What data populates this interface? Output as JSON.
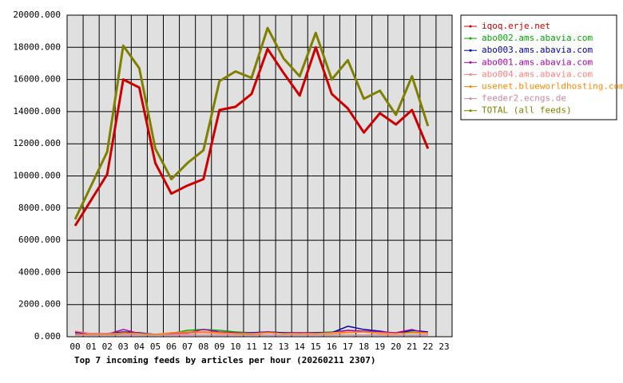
{
  "chart_data": {
    "type": "line",
    "title": "Top 7 incoming feeds by articles per hour (20260211 2307)",
    "categories": [
      "00",
      "01",
      "02",
      "03",
      "04",
      "05",
      "06",
      "07",
      "08",
      "09",
      "10",
      "11",
      "12",
      "13",
      "14",
      "15",
      "16",
      "17",
      "18",
      "19",
      "20",
      "21",
      "22",
      "23"
    ],
    "ylim": [
      0,
      20000
    ],
    "yticks": [
      {
        "value": 0,
        "label": "0.000"
      },
      {
        "value": 2000,
        "label": "2000.000"
      },
      {
        "value": 4000,
        "label": "4000.000"
      },
      {
        "value": 6000,
        "label": "6000.000"
      },
      {
        "value": 8000,
        "label": "8000.000"
      },
      {
        "value": 10000,
        "label": "10000.000"
      },
      {
        "value": 12000,
        "label": "12000.000"
      },
      {
        "value": 14000,
        "label": "14000.000"
      },
      {
        "value": 16000,
        "label": "16000.000"
      },
      {
        "value": 18000,
        "label": "18000.000"
      },
      {
        "value": 20000,
        "label": "20000.000"
      }
    ],
    "grid": true,
    "legend": "right",
    "series": [
      {
        "name": "iqoq.erje.net",
        "color": "#cc0000",
        "values": [
          6900,
          8500,
          10100,
          16000,
          15500,
          10800,
          8900,
          9400,
          9800,
          14100,
          14300,
          15100,
          17900,
          16400,
          15000,
          18000,
          15100,
          14200,
          12700,
          13900,
          13200,
          14100,
          11700,
          null
        ]
      },
      {
        "name": "abo002.ams.abavia.com",
        "color": "#00aa00",
        "values": [
          200,
          150,
          150,
          200,
          200,
          150,
          200,
          400,
          450,
          400,
          300,
          250,
          300,
          250,
          200,
          250,
          300,
          400,
          300,
          250,
          200,
          300,
          200,
          null
        ]
      },
      {
        "name": "abo003.ams.abavia.com",
        "color": "#0000aa",
        "values": [
          300,
          200,
          200,
          300,
          250,
          150,
          200,
          200,
          300,
          250,
          200,
          250,
          300,
          250,
          250,
          250,
          250,
          650,
          450,
          350,
          200,
          400,
          300,
          null
        ]
      },
      {
        "name": "abo001.ams.abavia.com",
        "color": "#aa00aa",
        "values": [
          200,
          150,
          150,
          450,
          200,
          150,
          200,
          250,
          450,
          300,
          250,
          200,
          300,
          200,
          250,
          200,
          250,
          400,
          350,
          300,
          250,
          450,
          200,
          null
        ]
      },
      {
        "name": "abo004.ams.abavia.com",
        "color": "#ff8080",
        "values": [
          350,
          200,
          200,
          200,
          200,
          150,
          150,
          200,
          250,
          200,
          200,
          200,
          250,
          200,
          200,
          200,
          250,
          300,
          300,
          250,
          200,
          250,
          200,
          null
        ]
      },
      {
        "name": "usenet.blueworldhosting.com",
        "color": "#ff8800",
        "values": [
          150,
          150,
          150,
          250,
          200,
          150,
          250,
          300,
          300,
          250,
          200,
          150,
          250,
          200,
          200,
          200,
          200,
          250,
          300,
          200,
          200,
          250,
          250,
          null
        ]
      },
      {
        "name": "feeder2.ecngs.de",
        "color": "#cc8899",
        "values": [
          100,
          100,
          100,
          100,
          100,
          100,
          100,
          100,
          100,
          100,
          100,
          100,
          100,
          100,
          100,
          100,
          100,
          100,
          100,
          100,
          100,
          100,
          100,
          null
        ]
      },
      {
        "name": "TOTAL (all feeds)",
        "color": "#808000",
        "values": [
          7300,
          9400,
          11500,
          18100,
          16700,
          11700,
          9800,
          10800,
          11600,
          15900,
          16500,
          16100,
          19200,
          17300,
          16200,
          18900,
          16000,
          17200,
          14800,
          15300,
          13800,
          16200,
          13100,
          null
        ]
      }
    ]
  }
}
